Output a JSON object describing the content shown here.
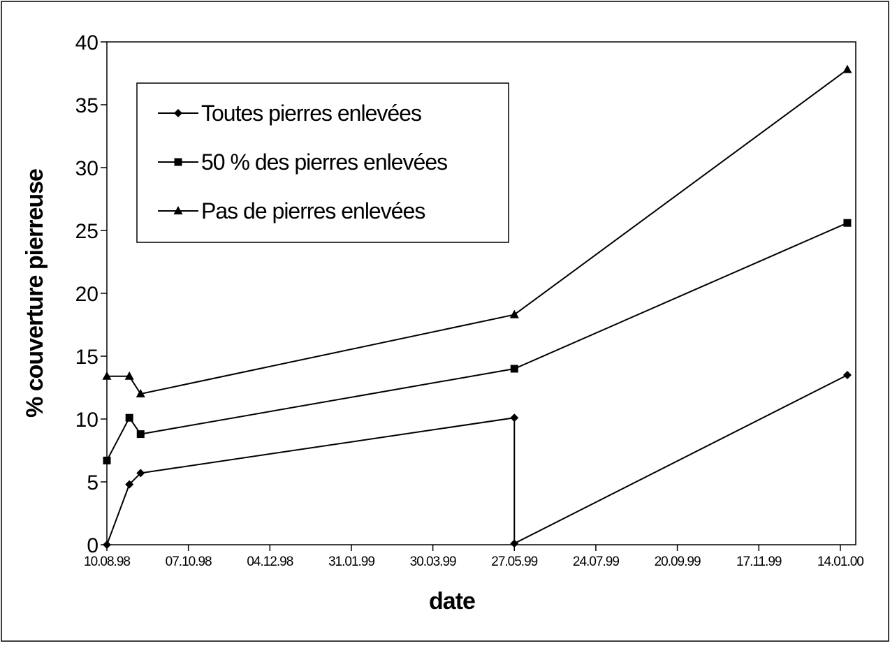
{
  "chart_data": {
    "type": "line",
    "title": "",
    "xlabel": "date",
    "ylabel": "% couverture pierreuse",
    "ylim": [
      0,
      40
    ],
    "yticks": [
      0,
      5,
      10,
      15,
      20,
      25,
      30,
      35,
      40
    ],
    "xlim": [
      "10.08.98",
      "25.01.00"
    ],
    "xticks": [
      "10.08.98",
      "07.10.98",
      "04.12.98",
      "31.01.99",
      "30.03.99",
      "27.05.99",
      "24.07.99",
      "20.09.99",
      "17.11.99",
      "14.01.00"
    ],
    "grid": false,
    "legend_position": "top-left",
    "series": [
      {
        "name": "Toutes pierres enlevées",
        "marker": "diamond",
        "x": [
          "10.08.98",
          "26.08.98",
          "03.09.98",
          "27.05.99",
          "27.05.99",
          "19.01.00"
        ],
        "y": [
          0,
          4.8,
          5.7,
          10.1,
          0.1,
          13.5
        ]
      },
      {
        "name": "50 % des pierres enlevées",
        "marker": "square",
        "x": [
          "10.08.98",
          "26.08.98",
          "03.09.98",
          "27.05.99",
          "19.01.00"
        ],
        "y": [
          6.7,
          10.1,
          8.8,
          14.0,
          25.6
        ]
      },
      {
        "name": "Pas de pierres enlevées",
        "marker": "triangle",
        "x": [
          "10.08.98",
          "26.08.98",
          "03.09.98",
          "27.05.99",
          "19.01.00"
        ],
        "y": [
          13.4,
          13.4,
          12.0,
          18.3,
          37.8
        ]
      }
    ]
  }
}
